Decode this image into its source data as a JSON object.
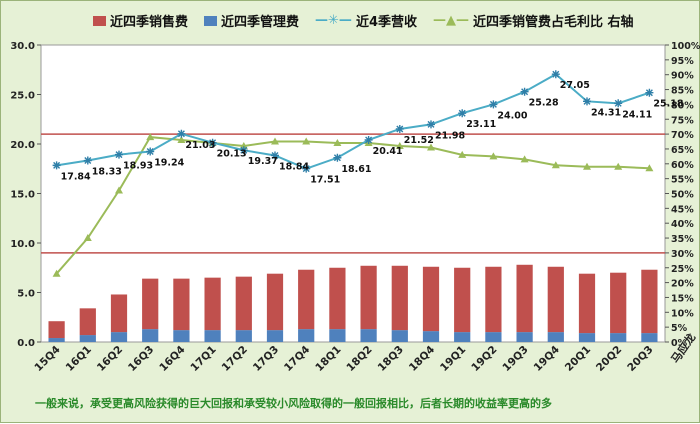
{
  "chart_data": {
    "type": "bar",
    "categories": [
      "15Q4",
      "16Q1",
      "16Q2",
      "16Q3",
      "16Q4",
      "17Q1",
      "17Q2",
      "17Q3",
      "17Q4",
      "18Q1",
      "18Q2",
      "18Q3",
      "18Q4",
      "19Q1",
      "19Q2",
      "19Q3",
      "19Q4",
      "20Q1",
      "20Q2",
      "20Q3"
    ],
    "series": [
      {
        "name": "近四季销售费",
        "type": "bar",
        "axis": "left",
        "color": "#c0504d",
        "values": [
          1.7,
          2.7,
          3.8,
          5.1,
          5.2,
          5.3,
          5.4,
          5.7,
          6.0,
          6.2,
          6.4,
          6.5,
          6.5,
          6.5,
          6.6,
          6.8,
          6.6,
          6.0,
          6.1,
          6.4
        ]
      },
      {
        "name": "近四季管理费",
        "type": "bar",
        "axis": "left",
        "color": "#4f81bd",
        "values": [
          0.4,
          0.7,
          1.0,
          1.3,
          1.2,
          1.2,
          1.2,
          1.2,
          1.3,
          1.3,
          1.3,
          1.2,
          1.1,
          1.0,
          1.0,
          1.0,
          1.0,
          0.9,
          0.9,
          0.9
        ]
      },
      {
        "name": "近4季营收",
        "type": "line",
        "axis": "left",
        "color": "#4bacc6",
        "marker": "star",
        "values": [
          17.84,
          18.33,
          18.93,
          19.24,
          21.03,
          20.13,
          19.37,
          18.84,
          17.51,
          18.61,
          20.41,
          21.52,
          21.98,
          23.11,
          24.0,
          25.28,
          27.05,
          24.31,
          24.11,
          25.18
        ]
      },
      {
        "name": "近四季销管费占毛利比 右轴",
        "type": "line",
        "axis": "right",
        "color": "#9bbb59",
        "marker": "triangle",
        "values": [
          23,
          35,
          51,
          69,
          68,
          67,
          66,
          67.5,
          67.5,
          67,
          67,
          66,
          65.5,
          63,
          62.5,
          61.5,
          59.5,
          59,
          59,
          58.5
        ]
      }
    ],
    "data_labels": [
      "17.84",
      "18.33",
      "18.93",
      "19.24",
      "21.03",
      "20.13",
      "19.37",
      "18.84",
      "17.51",
      "18.61",
      "20.41",
      "21.52",
      "21.98",
      "23.11",
      "24.00",
      "25.28",
      "27.05",
      "24.31",
      "24.11",
      "25.18"
    ],
    "y_left": {
      "range": [
        0,
        30
      ],
      "ticks": [
        "0.0",
        "5.0",
        "10.0",
        "15.0",
        "20.0",
        "25.0",
        "30.0"
      ]
    },
    "y_right": {
      "range": [
        0,
        100
      ],
      "ticks": [
        "0%",
        "5%",
        "10%",
        "15%",
        "20%",
        "25%",
        "30%",
        "35%",
        "40%",
        "45%",
        "50%",
        "55%",
        "60%",
        "65%",
        "70%",
        "75%",
        "80%",
        "85%",
        "90%",
        "95%",
        "100%"
      ]
    },
    "reference_lines": [
      {
        "axis": "left",
        "value": 21.0,
        "color": "#c0504d"
      },
      {
        "axis": "left",
        "value": 9.0,
        "color": "#c0504d"
      }
    ],
    "legend_position": "top",
    "grid": false,
    "note": "一般来说，承受更高风险获得的巨大回报和承受较小风险取得的一般回报相比，后者长期的收益率更高的多",
    "author": "马应龙"
  }
}
